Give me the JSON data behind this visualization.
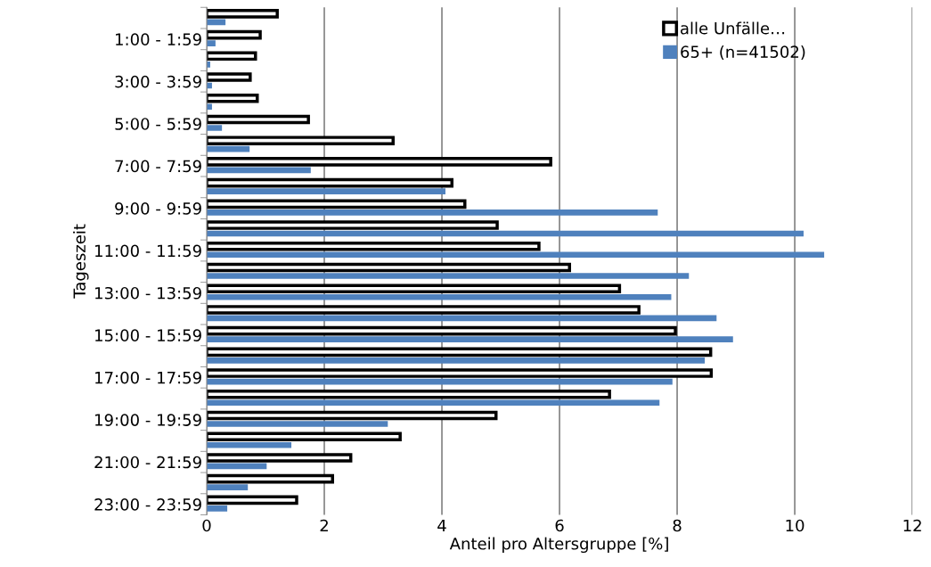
{
  "chart_data": {
    "type": "bar",
    "orientation": "horizontal",
    "xlabel": "Anteil pro Altersgruppe [%]",
    "ylabel": "Tageszeit",
    "categories": [
      null,
      "1:00 - 1:59",
      null,
      "3:00 - 3:59",
      null,
      "5:00 - 5:59",
      null,
      "7:00 - 7:59",
      null,
      "9:00 - 9:59",
      null,
      "11:00 - 11:59",
      null,
      "13:00 - 13:59",
      null,
      "15:00 - 15:59",
      null,
      "17:00 - 17:59",
      null,
      "19:00 - 19:59",
      null,
      "21:00 - 21:59",
      null,
      "23:00 - 23:59"
    ],
    "series": [
      {
        "name": "alle Unfälle…",
        "color": "#000000",
        "values": [
          1.2,
          0.91,
          0.83,
          0.74,
          0.86,
          1.73,
          3.17,
          5.85,
          4.17,
          4.39,
          4.94,
          5.65,
          6.17,
          7.02,
          7.35,
          7.97,
          8.57,
          8.58,
          6.85,
          4.92,
          3.29,
          2.45,
          2.14,
          1.53
        ]
      },
      {
        "name": "65+ (n=41502)",
        "color": "#4f81bd",
        "values": [
          0.32,
          0.15,
          0.06,
          0.09,
          0.09,
          0.26,
          0.73,
          1.77,
          4.06,
          7.67,
          10.15,
          10.5,
          8.2,
          7.9,
          8.67,
          8.95,
          8.47,
          7.92,
          7.7,
          3.08,
          1.44,
          1.02,
          0.7,
          0.35
        ]
      }
    ],
    "xlim": [
      0,
      12
    ],
    "xticks": [
      0,
      2,
      4,
      6,
      8,
      10,
      12
    ],
    "grid": "x",
    "legend": "top right"
  }
}
